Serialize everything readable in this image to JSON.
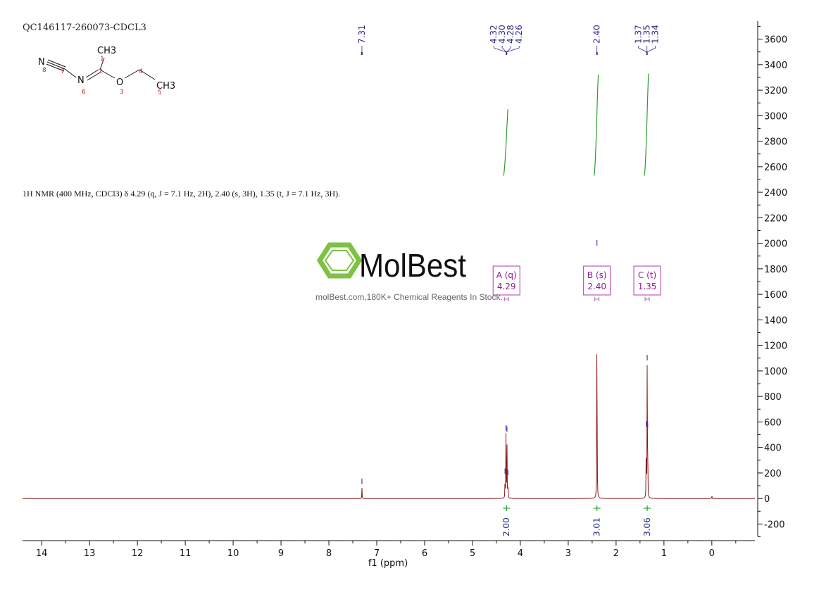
{
  "sample_id": "QC146117-260073-CDCL3",
  "nmr_summary": "1H NMR (400 MHz, CDCl3) δ 4.29 (q, J = 7.1 Hz, 2H), 2.40 (s, 3H), 1.35 (t, J = 7.1 Hz, 3H).",
  "watermark": {
    "brand": "MolBest",
    "tagline": "molBest.com,180K+ Chemical Reagents In Stock.",
    "logo_color": "#7dc242"
  },
  "structure": {
    "atoms": [
      {
        "symbol": "N",
        "num": "8"
      },
      {
        "symbol": "",
        "num": "7"
      },
      {
        "symbol": "N",
        "num": "6"
      },
      {
        "symbol": "CH3",
        "num": "1"
      },
      {
        "symbol": "",
        "num": "2"
      },
      {
        "symbol": "O",
        "num": "3"
      },
      {
        "symbol": "",
        "num": "4"
      },
      {
        "symbol": "CH3",
        "num": "5"
      }
    ]
  },
  "colors": {
    "spectrum": "#8b1a1a",
    "integral_curve": "#2e9b2e",
    "peak_label": "#2b2b8a",
    "multiplet_box": "#b03ab0"
  },
  "chart_data": {
    "type": "line",
    "title": "",
    "xlabel": "f1 (ppm)",
    "ylabel": "",
    "x_reversed": true,
    "xlim": [
      14.4,
      -0.9
    ],
    "ylim": [
      -330,
      3730
    ],
    "x_ticks": [
      "14",
      "13",
      "12",
      "11",
      "10",
      "9",
      "8",
      "7",
      "6",
      "5",
      "4",
      "3",
      "2",
      "1",
      "0"
    ],
    "y_ticks": [
      "3600",
      "3400",
      "3200",
      "3000",
      "2800",
      "2600",
      "2400",
      "2200",
      "2000",
      "1800",
      "1600",
      "1400",
      "1200",
      "1000",
      "800",
      "600",
      "400",
      "200",
      "0",
      "-200"
    ],
    "peaks": [
      {
        "ppm": 7.31,
        "height": 90
      },
      {
        "ppm": 4.32,
        "height": 170
      },
      {
        "ppm": 4.3,
        "height": 510
      },
      {
        "ppm": 4.28,
        "height": 500
      },
      {
        "ppm": 4.26,
        "height": 160
      },
      {
        "ppm": 2.4,
        "height": 1960
      },
      {
        "ppm": 1.37,
        "height": 540
      },
      {
        "ppm": 1.35,
        "height": 1060
      },
      {
        "ppm": 1.34,
        "height": 530
      },
      {
        "ppm": 0.0,
        "height": 30
      }
    ],
    "peak_labels": [
      {
        "text": "7.31",
        "ppm": 7.31
      },
      {
        "text": "4.32",
        "ppm": 4.32
      },
      {
        "text": "4.30",
        "ppm": 4.3
      },
      {
        "text": "4.28",
        "ppm": 4.28
      },
      {
        "text": "4.26",
        "ppm": 4.26
      },
      {
        "text": "2.40",
        "ppm": 2.4
      },
      {
        "text": "1.37",
        "ppm": 1.37
      },
      {
        "text": "1.35",
        "ppm": 1.35
      },
      {
        "text": "1.34",
        "ppm": 1.34
      }
    ],
    "multiplets": [
      {
        "label": "A (q)",
        "shift": "4.29",
        "ppm": 4.29
      },
      {
        "label": "B (s)",
        "shift": "2.40",
        "ppm": 2.4
      },
      {
        "label": "C (t)",
        "shift": "1.35",
        "ppm": 1.35
      }
    ],
    "integrals": [
      {
        "value": "2.00",
        "ppm": 4.29,
        "y_start": 2530,
        "y_end": 3050
      },
      {
        "value": "3.01",
        "ppm": 2.4,
        "y_start": 2530,
        "y_end": 3320
      },
      {
        "value": "3.06",
        "ppm": 1.35,
        "y_start": 2530,
        "y_end": 3330
      }
    ]
  }
}
